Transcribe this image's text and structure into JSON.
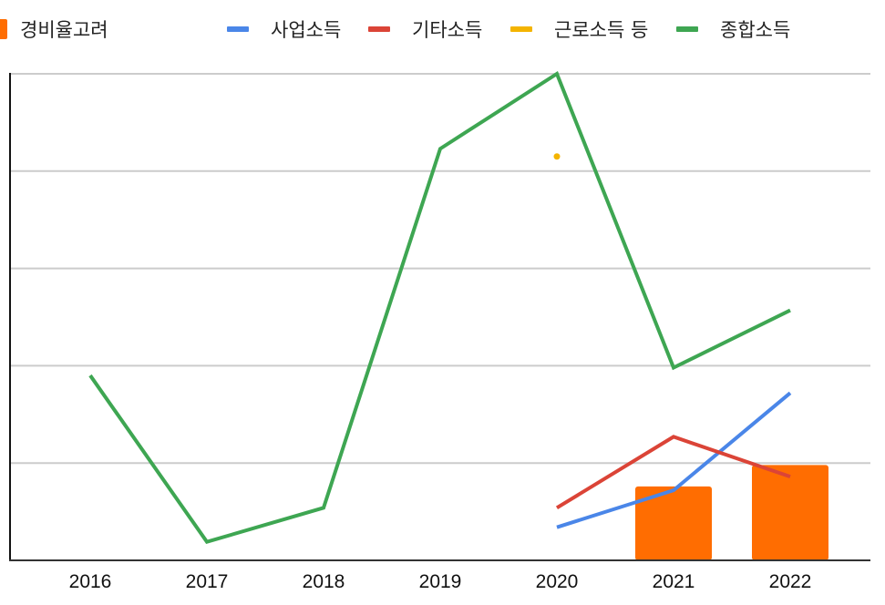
{
  "legend": {
    "items": [
      {
        "label": "경비율고려",
        "color": "#ff6d01",
        "kind": "bar"
      },
      {
        "label": "사업소득",
        "color": "#4a86e8",
        "kind": "line"
      },
      {
        "label": "기타소득",
        "color": "#db4437",
        "kind": "line"
      },
      {
        "label": "근로소득 등",
        "color": "#f4b400",
        "kind": "line"
      },
      {
        "label": "종합소득",
        "color": "#3ea652",
        "kind": "line"
      }
    ]
  },
  "chart_data": {
    "type": "bar",
    "title": "",
    "xlabel": "",
    "ylabel": "",
    "categories": [
      "2016",
      "2017",
      "2018",
      "2019",
      "2020",
      "2021",
      "2022"
    ],
    "ylim": [
      0,
      5
    ],
    "y_ticks_visible": false,
    "grid": true,
    "gridlines": [
      1,
      2,
      3,
      4,
      5
    ],
    "legend_position": "top",
    "series": [
      {
        "name": "경비율고려",
        "type": "bar",
        "color": "#ff6d01",
        "values": [
          null,
          null,
          null,
          null,
          null,
          0.76,
          0.98
        ]
      },
      {
        "name": "사업소득",
        "type": "line",
        "color": "#4a86e8",
        "values": [
          null,
          null,
          null,
          null,
          0.34,
          0.72,
          1.72
        ]
      },
      {
        "name": "기타소득",
        "type": "line",
        "color": "#db4437",
        "values": [
          null,
          null,
          null,
          null,
          0.54,
          1.27,
          0.86
        ]
      },
      {
        "name": "근로소득 등",
        "type": "line",
        "color": "#f4b400",
        "values": [
          null,
          null,
          null,
          null,
          4.15,
          null,
          null
        ]
      },
      {
        "name": "종합소득",
        "type": "line",
        "color": "#3ea652",
        "values": [
          1.9,
          0.19,
          0.54,
          4.23,
          5.0,
          1.98,
          2.57
        ]
      }
    ]
  }
}
